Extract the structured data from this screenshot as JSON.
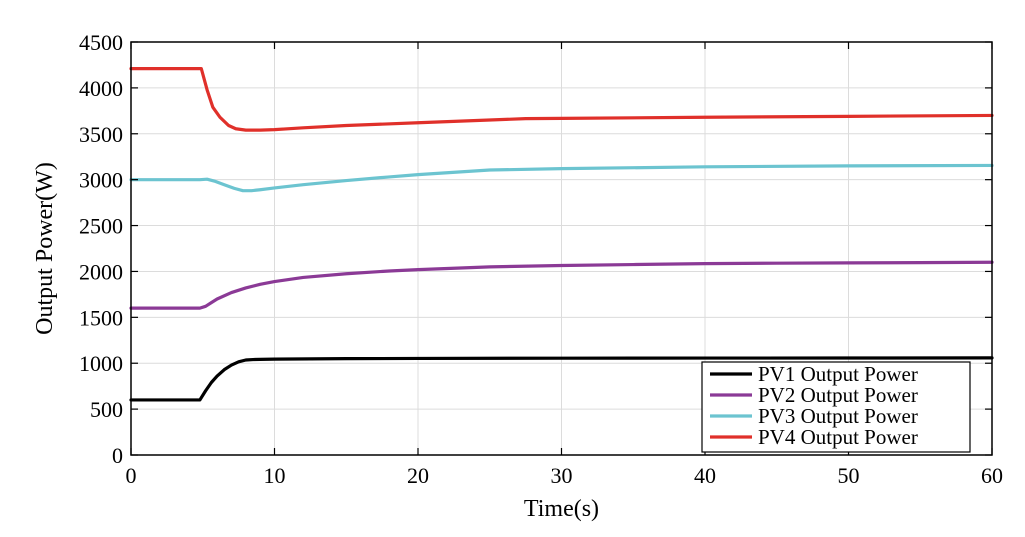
{
  "chart_data": {
    "type": "line",
    "title": "",
    "xlabel": "Time(s)",
    "ylabel": "Output Power(W)",
    "xlim": [
      0,
      60
    ],
    "ylim": [
      0,
      4500
    ],
    "xticks": [
      0,
      10,
      20,
      30,
      40,
      50,
      60
    ],
    "yticks": [
      0,
      500,
      1000,
      1500,
      2000,
      2500,
      3000,
      3500,
      4000,
      4500
    ],
    "grid": true,
    "legend_position": "bottom-right",
    "series": [
      {
        "name": "PV1 Output Power",
        "color": "#000000",
        "x": [
          0,
          4.8,
          5.2,
          5.6,
          6.0,
          6.5,
          7.0,
          7.5,
          8.0,
          8.5,
          9,
          10,
          15,
          20,
          30,
          40,
          50,
          60
        ],
        "y": [
          600,
          600,
          700,
          790,
          860,
          930,
          980,
          1015,
          1035,
          1040,
          1042,
          1045,
          1050,
          1052,
          1055,
          1056,
          1057,
          1058
        ]
      },
      {
        "name": "PV2 Output Power",
        "color": "#8b3a96",
        "x": [
          0,
          4.8,
          5.2,
          5.6,
          6.0,
          7.0,
          8.0,
          9,
          10,
          12,
          15,
          18,
          20,
          25,
          30,
          35,
          40,
          45,
          50,
          55,
          60
        ],
        "y": [
          1600,
          1600,
          1620,
          1660,
          1700,
          1770,
          1820,
          1860,
          1890,
          1935,
          1975,
          2005,
          2020,
          2050,
          2065,
          2075,
          2085,
          2090,
          2093,
          2096,
          2100
        ]
      },
      {
        "name": "PV3 Output Power",
        "color": "#6cc4d0",
        "x": [
          0,
          4.8,
          5.3,
          5.8,
          6.5,
          7.2,
          7.8,
          8.4,
          9,
          10,
          12,
          15,
          18,
          20,
          25,
          30,
          40,
          50,
          60
        ],
        "y": [
          3000,
          3000,
          3005,
          2985,
          2945,
          2905,
          2880,
          2880,
          2890,
          2910,
          2945,
          2990,
          3030,
          3055,
          3105,
          3120,
          3140,
          3150,
          3155
        ]
      },
      {
        "name": "PV4 Output Power",
        "color": "#e0302a",
        "x": [
          0,
          4.9,
          5.3,
          5.7,
          6.2,
          6.8,
          7.3,
          8.0,
          9,
          10,
          12,
          15,
          20,
          25,
          27.5,
          30,
          40,
          50,
          60
        ],
        "y": [
          4210,
          4210,
          3980,
          3790,
          3680,
          3590,
          3555,
          3540,
          3540,
          3545,
          3565,
          3590,
          3620,
          3650,
          3665,
          3668,
          3680,
          3690,
          3700
        ]
      }
    ]
  }
}
